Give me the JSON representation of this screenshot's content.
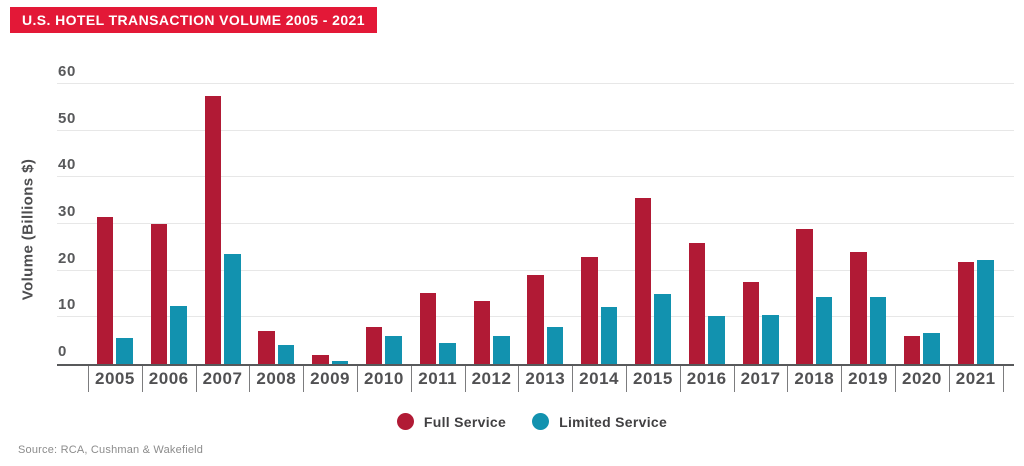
{
  "title": "U.S. HOTEL TRANSACTION VOLUME 2005 - 2021",
  "source": "Source: RCA, Cushman & Wakefield",
  "colors": {
    "banner_red": "#E31837",
    "full_service_red": "#B11A35",
    "limited_service_teal": "#1292AF",
    "gridline_gray": "#E7E7E7",
    "axis_dark_gray": "#58595B"
  },
  "chart_data": {
    "type": "bar",
    "title": "U.S. HOTEL TRANSACTION VOLUME 2005 - 2021",
    "xlabel": "",
    "ylabel": "Volume (Billions $)",
    "ylim": [
      0,
      60
    ],
    "ytick_step": 10,
    "yticks": [
      "0",
      "10",
      "20",
      "30",
      "40",
      "50",
      "60"
    ],
    "grid": true,
    "legend_position": "bottom-center",
    "categories": [
      "2005",
      "2006",
      "2007",
      "2008",
      "2009",
      "2010",
      "2011",
      "2012",
      "2013",
      "2014",
      "2015",
      "2016",
      "2017",
      "2018",
      "2019",
      "2020",
      "2021"
    ],
    "series": [
      {
        "name": "Full Service",
        "color": "#B11A35",
        "values": [
          31.4,
          30,
          57.5,
          7,
          2,
          8,
          15.3,
          13.5,
          19,
          23,
          35.5,
          26,
          17.5,
          29,
          24,
          6,
          21.8
        ]
      },
      {
        "name": "Limited Service",
        "color": "#1292AF",
        "values": [
          5.6,
          12.5,
          23.6,
          4,
          0.7,
          6,
          4.6,
          6,
          8,
          12.2,
          15,
          10.3,
          10.6,
          14.4,
          14.4,
          6.7,
          22.3
        ]
      }
    ]
  }
}
